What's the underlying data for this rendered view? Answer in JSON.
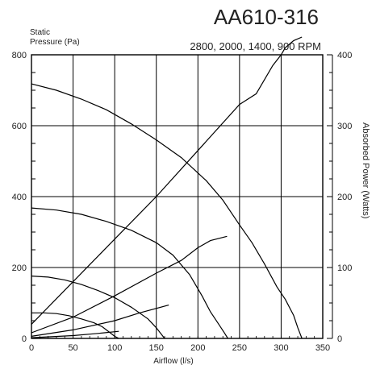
{
  "chart_data": {
    "type": "line",
    "title": "AA610-316",
    "subtitle": "2800, 2000, 1400, 900 RPM",
    "ylabel_left_line1": "Static",
    "ylabel_left_line2": "Pressure (Pa)",
    "ylabel_right": "Absorbed Power  (Watts)",
    "xlabel": "Airflow   (l/s)",
    "xlim": [
      0,
      350
    ],
    "ylim_left": [
      0,
      800
    ],
    "ylim_right": [
      0,
      400
    ],
    "xticks": [
      0,
      50,
      100,
      150,
      200,
      250,
      300,
      350
    ],
    "yticks_left": [
      0,
      200,
      400,
      600,
      800
    ],
    "yticks_right": [
      0,
      100,
      200,
      300,
      400
    ],
    "grid": true,
    "pressure_series": [
      {
        "rpm": 2800,
        "x": [
          0,
          30,
          60,
          90,
          120,
          150,
          180,
          210,
          230,
          250,
          265,
          280,
          295,
          305,
          315,
          320,
          325
        ],
        "y": [
          718,
          700,
          675,
          645,
          605,
          560,
          510,
          445,
          390,
          320,
          270,
          210,
          145,
          110,
          65,
          30,
          0
        ]
      },
      {
        "rpm": 2000,
        "x": [
          0,
          30,
          60,
          90,
          120,
          150,
          170,
          190,
          205,
          215,
          225,
          232,
          236
        ],
        "y": [
          368,
          362,
          350,
          330,
          305,
          270,
          235,
          180,
          120,
          75,
          40,
          15,
          0
        ]
      },
      {
        "rpm": 1400,
        "x": [
          0,
          20,
          40,
          60,
          80,
          100,
          120,
          140,
          150,
          160
        ],
        "y": [
          176,
          173,
          165,
          152,
          135,
          115,
          88,
          55,
          30,
          0
        ]
      },
      {
        "rpm": 900,
        "x": [
          0,
          15,
          30,
          45,
          60,
          75,
          85,
          95,
          100,
          105
        ],
        "y": [
          72,
          72,
          70,
          64,
          55,
          44,
          33,
          15,
          6,
          0
        ]
      }
    ],
    "power_series": [
      {
        "rpm": 2800,
        "x": [
          0,
          50,
          100,
          150,
          200,
          250,
          270,
          280,
          290,
          300,
          305,
          315,
          325
        ],
        "y": [
          20,
          80,
          140,
          200,
          265,
          330,
          345,
          365,
          385,
          400,
          410,
          420,
          425
        ]
      },
      {
        "rpm": 2000,
        "x": [
          0,
          50,
          100,
          150,
          180,
          200,
          215,
          235
        ],
        "y": [
          8,
          30,
          60,
          92,
          110,
          128,
          138,
          144
        ]
      },
      {
        "rpm": 1400,
        "x": [
          0,
          50,
          100,
          130,
          165
        ],
        "y": [
          3,
          12,
          25,
          36,
          47
        ]
      },
      {
        "rpm": 900,
        "x": [
          0,
          50,
          80,
          105
        ],
        "y": [
          1,
          4,
          7,
          10
        ]
      }
    ]
  }
}
